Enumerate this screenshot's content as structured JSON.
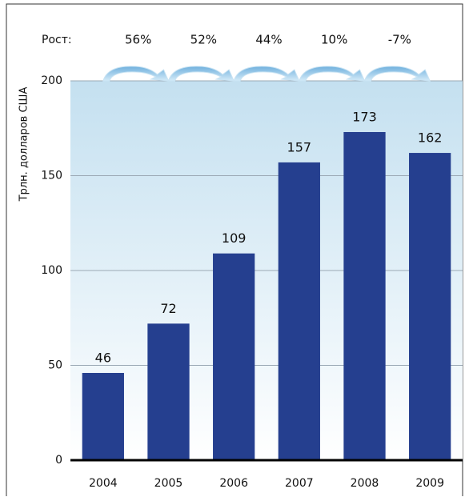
{
  "chart_data": {
    "type": "bar",
    "y_label": "Трлн. долларов США",
    "categories": [
      "2004",
      "2005",
      "2006",
      "2007",
      "2008",
      "2009"
    ],
    "values": [
      46,
      72,
      109,
      157,
      173,
      162
    ],
    "color": "#253f8f",
    "ylim": [
      0,
      200
    ],
    "yticks": [
      0,
      50,
      100,
      150,
      200
    ],
    "grid": true,
    "growth": {
      "label": "Рост:",
      "values": [
        56,
        52,
        44,
        10,
        -7
      ],
      "value_labels": [
        "56%",
        "52%",
        "44%",
        "10%",
        "-7%"
      ],
      "color": "#8ec3e6"
    }
  }
}
